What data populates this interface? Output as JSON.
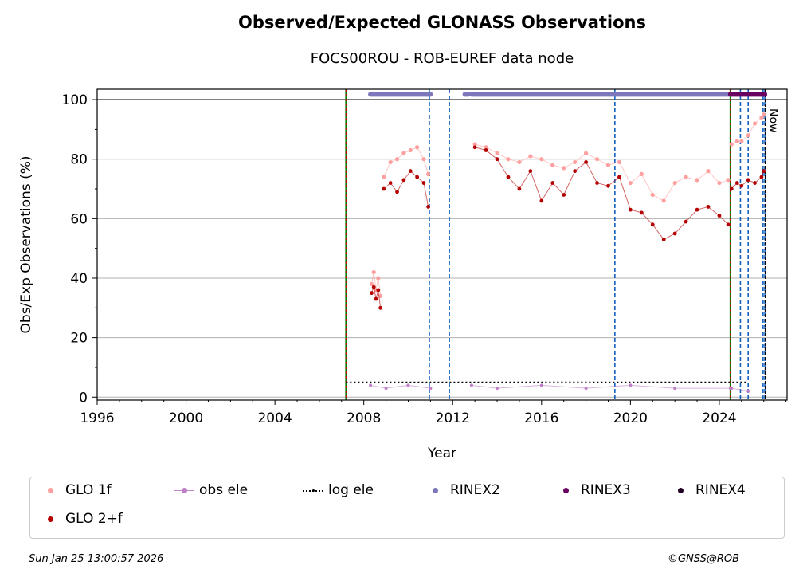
{
  "title": "Observed/Expected GLONASS Observations",
  "subtitle": "FOCS00ROU - ROB-EUREF data node",
  "footer": {
    "date": "Sun Jan 25 13:00:57 2026",
    "copyright": "©GNSS@ROB"
  },
  "colors": {
    "glo_1f": "#ffa0a0",
    "glo_2f": "#b40000",
    "obs_ele": "#c080c8",
    "log_ele": "#000000",
    "rinex2": "#7d78bb",
    "rinex3": "#6a0060",
    "rinex4": "#200020",
    "equipment_change": "#1060c0",
    "receiver_change": "#008000",
    "antenna_change": "#c00000"
  },
  "legend": [
    {
      "key": "glo_1f",
      "label": "GLO 1f",
      "marker": "dot"
    },
    {
      "key": "obs_ele",
      "label": "obs ele",
      "marker": "line-dot"
    },
    {
      "key": "log_ele",
      "label": "log ele",
      "marker": "dotted"
    },
    {
      "key": "rinex2",
      "label": "RINEX2",
      "marker": "dot"
    },
    {
      "key": "rinex3",
      "label": "RINEX3",
      "marker": "dot"
    },
    {
      "key": "rinex4",
      "label": "RINEX4",
      "marker": "dot"
    },
    {
      "key": "glo_2f",
      "label": "GLO 2+f",
      "marker": "dot"
    }
  ],
  "chart_data": {
    "type": "scatter",
    "xlabel": "Year",
    "ylabel": "Obs/Exp Observations (%)",
    "xlim": [
      1996,
      2027.05
    ],
    "ylim": [
      -1,
      103.5
    ],
    "xticks": [
      1996,
      2000,
      2004,
      2008,
      2012,
      2016,
      2020,
      2024
    ],
    "yticks": [
      0,
      20,
      40,
      60,
      80,
      100
    ],
    "grid": "horizontal",
    "now_label": "Now",
    "now_year": 2026.07,
    "reference_line": 100,
    "equipment_change_years": [
      2010.95,
      2011.85,
      2019.3,
      2024.95,
      2025.3,
      2025.97,
      2026.05
    ],
    "receiver_antenna_change_years": [
      2007.2,
      2024.5
    ],
    "log_ele": {
      "from": 2007.2,
      "to": 2025.3,
      "value": 5
    },
    "rinex2_periods": [
      [
        2008.3,
        2011.0
      ],
      [
        2012.55,
        2012.7
      ],
      [
        2012.85,
        2024.5
      ]
    ],
    "rinex3_periods": [
      [
        2024.5,
        2026.05
      ]
    ],
    "series": [
      {
        "name": "GLO 1f",
        "segments": [
          {
            "x": [
              2008.35,
              2008.45,
              2008.55,
              2008.65,
              2008.75
            ],
            "y": [
              38,
              42,
              36,
              40,
              34
            ]
          },
          {
            "x": [
              2008.9,
              2009.2,
              2009.5,
              2009.8,
              2010.1,
              2010.4,
              2010.7,
              2010.9
            ],
            "y": [
              74,
              79,
              80,
              82,
              83,
              84,
              80,
              75
            ]
          },
          {
            "x": [
              2013.0,
              2013.5,
              2014.0,
              2014.5,
              2015.0,
              2015.5,
              2016.0,
              2016.5,
              2017.0,
              2017.5,
              2018.0,
              2018.5,
              2019.0,
              2019.5,
              2020.0,
              2020.5,
              2021.0,
              2021.5,
              2022.0,
              2022.5,
              2023.0,
              2023.5,
              2024.0,
              2024.4
            ],
            "y": [
              85,
              84,
              82,
              80,
              79,
              81,
              80,
              78,
              77,
              79,
              82,
              80,
              78,
              79,
              72,
              75,
              68,
              66,
              72,
              74,
              73,
              76,
              72,
              73
            ]
          },
          {
            "x": [
              2024.55,
              2024.8,
              2025.0,
              2025.3,
              2025.6,
              2025.9,
              2026.0
            ],
            "y": [
              85,
              86,
              86,
              88,
              92,
              94,
              95
            ]
          }
        ]
      },
      {
        "name": "GLO 2+f",
        "segments": [
          {
            "x": [
              2008.35,
              2008.45,
              2008.55,
              2008.65,
              2008.75
            ],
            "y": [
              35,
              37,
              33,
              36,
              30
            ]
          },
          {
            "x": [
              2008.9,
              2009.2,
              2009.5,
              2009.8,
              2010.1,
              2010.4,
              2010.7,
              2010.9
            ],
            "y": [
              70,
              72,
              69,
              73,
              76,
              74,
              72,
              64
            ]
          },
          {
            "x": [
              2013.0,
              2013.5,
              2014.0,
              2014.5,
              2015.0,
              2015.5,
              2016.0,
              2016.5,
              2017.0,
              2017.5,
              2018.0,
              2018.5,
              2019.0,
              2019.5,
              2020.0,
              2020.5,
              2021.0,
              2021.5,
              2022.0,
              2022.5,
              2023.0,
              2023.5,
              2024.0,
              2024.4
            ],
            "y": [
              84,
              83,
              80,
              74,
              70,
              76,
              66,
              72,
              68,
              76,
              79,
              72,
              71,
              74,
              63,
              62,
              58,
              53,
              55,
              59,
              63,
              64,
              61,
              58
            ]
          },
          {
            "x": [
              2024.55,
              2024.8,
              2025.0,
              2025.3,
              2025.6,
              2025.9,
              2026.0
            ],
            "y": [
              70,
              72,
              71,
              73,
              72,
              74,
              76
            ]
          }
        ]
      },
      {
        "name": "obs ele",
        "segments": [
          {
            "x": [
              2008.3,
              2009.0,
              2010.0,
              2011.0
            ],
            "y": [
              4,
              3,
              4,
              3
            ]
          },
          {
            "x": [
              2012.85,
              2014.0,
              2016.0,
              2018.0,
              2020.0,
              2022.0,
              2024.5
            ],
            "y": [
              4,
              3,
              4,
              3,
              4,
              3,
              3
            ]
          },
          {
            "x": [
              2024.55,
              2025.3
            ],
            "y": [
              3,
              2
            ]
          }
        ]
      }
    ]
  }
}
